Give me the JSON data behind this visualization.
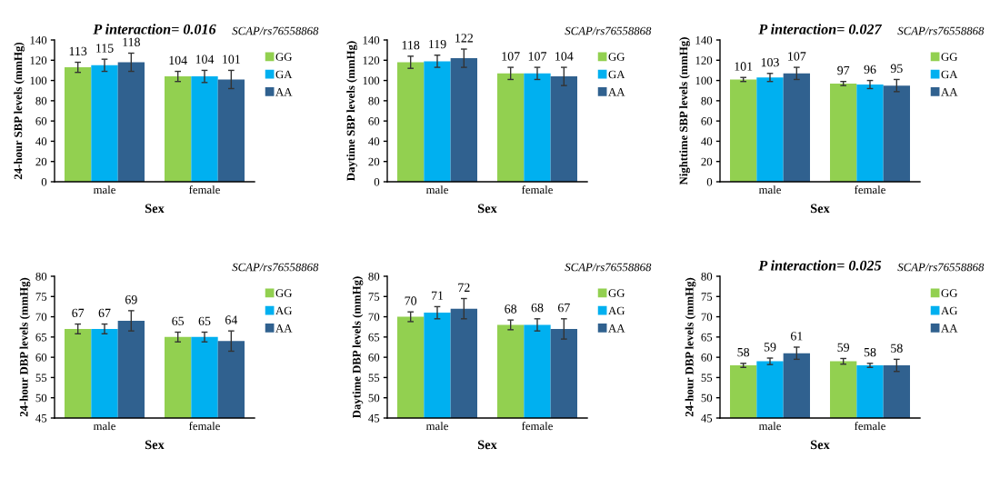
{
  "chart_data": [
    {
      "type": "bar",
      "categories": [
        "male",
        "female"
      ],
      "xlabel": "Sex",
      "ylabel": "24-hour SBP levels (mmHg)",
      "ylim": [
        0,
        140
      ],
      "yticks": [
        0,
        20,
        40,
        60,
        80,
        100,
        120,
        140
      ],
      "legend": "right",
      "data_labels": true,
      "grid": false,
      "annotations": [
        "SCAP/rs76558868",
        "P interaction= 0.016"
      ],
      "series": [
        {
          "name": "GG",
          "color": "#92d050",
          "values": [
            113,
            104
          ],
          "errors": [
            5,
            5
          ]
        },
        {
          "name": "GA",
          "color": "#00b0f0",
          "values": [
            115,
            104
          ],
          "errors": [
            6,
            6
          ]
        },
        {
          "name": "AA",
          "color": "#30618f",
          "values": [
            118,
            101
          ],
          "errors": [
            9,
            9
          ]
        }
      ]
    },
    {
      "type": "bar",
      "categories": [
        "male",
        "female"
      ],
      "xlabel": "Sex",
      "ylabel": "Daytime SBP levels (mmHg)",
      "ylim": [
        0,
        140
      ],
      "yticks": [
        0,
        20,
        40,
        60,
        80,
        100,
        120,
        140
      ],
      "legend": "right",
      "data_labels": true,
      "grid": false,
      "annotations": [
        "SCAP/rs76558868"
      ],
      "series": [
        {
          "name": "GG",
          "color": "#92d050",
          "values": [
            118,
            107
          ],
          "errors": [
            6,
            6
          ]
        },
        {
          "name": "GA",
          "color": "#00b0f0",
          "values": [
            119,
            107
          ],
          "errors": [
            6,
            6
          ]
        },
        {
          "name": "AA",
          "color": "#30618f",
          "values": [
            122,
            104
          ],
          "errors": [
            9,
            9
          ]
        }
      ]
    },
    {
      "type": "bar",
      "categories": [
        "male",
        "female"
      ],
      "xlabel": "Sex",
      "ylabel": "Nighttime SBP levels (mmHg)",
      "ylim": [
        0,
        140
      ],
      "yticks": [
        0,
        20,
        40,
        60,
        80,
        100,
        120,
        140
      ],
      "legend": "right",
      "data_labels": true,
      "grid": false,
      "annotations": [
        "SCAP/rs76558868",
        "P interaction= 0.027"
      ],
      "series": [
        {
          "name": "GG",
          "color": "#92d050",
          "values": [
            101,
            97
          ],
          "errors": [
            2,
            2
          ]
        },
        {
          "name": "GA",
          "color": "#00b0f0",
          "values": [
            103,
            96
          ],
          "errors": [
            4,
            4
          ]
        },
        {
          "name": "AA",
          "color": "#30618f",
          "values": [
            107,
            95
          ],
          "errors": [
            6,
            6
          ]
        }
      ]
    },
    {
      "type": "bar",
      "categories": [
        "male",
        "female"
      ],
      "xlabel": "Sex",
      "ylabel": "24-hour DBP levels (mmHg)",
      "ylim": [
        45,
        80
      ],
      "yticks": [
        45,
        50,
        55,
        60,
        65,
        70,
        75,
        80
      ],
      "legend": "right",
      "data_labels": true,
      "grid": false,
      "annotations": [
        "SCAP/rs76558868"
      ],
      "series": [
        {
          "name": "GG",
          "color": "#92d050",
          "values": [
            67,
            65
          ],
          "errors": [
            1.2,
            1.2
          ]
        },
        {
          "name": "AG",
          "color": "#00b0f0",
          "values": [
            67,
            65
          ],
          "errors": [
            1.2,
            1.2
          ]
        },
        {
          "name": "AA",
          "color": "#30618f",
          "values": [
            69,
            64
          ],
          "errors": [
            2.5,
            2.5
          ]
        }
      ]
    },
    {
      "type": "bar",
      "categories": [
        "male",
        "female"
      ],
      "xlabel": "Sex",
      "ylabel": "Daytime DBP levels (mmHg)",
      "ylim": [
        45,
        80
      ],
      "yticks": [
        45,
        50,
        55,
        60,
        65,
        70,
        75,
        80
      ],
      "legend": "right",
      "data_labels": true,
      "grid": false,
      "annotations": [
        "SCAP/rs76558868"
      ],
      "series": [
        {
          "name": "GG",
          "color": "#92d050",
          "values": [
            70,
            68
          ],
          "errors": [
            1.2,
            1.2
          ]
        },
        {
          "name": "AG",
          "color": "#00b0f0",
          "values": [
            71,
            68
          ],
          "errors": [
            1.5,
            1.5
          ]
        },
        {
          "name": "AA",
          "color": "#30618f",
          "values": [
            72,
            67
          ],
          "errors": [
            2.5,
            2.5
          ]
        }
      ]
    },
    {
      "type": "bar",
      "categories": [
        "male",
        "female"
      ],
      "xlabel": "Sex",
      "ylabel": "24-hour DBP levels (mmHg)",
      "ylim": [
        45,
        80
      ],
      "yticks": [
        45,
        50,
        55,
        60,
        65,
        70,
        75,
        80
      ],
      "legend": "right",
      "data_labels": true,
      "grid": false,
      "annotations": [
        "SCAP/rs76558868",
        "P interaction= 0.025"
      ],
      "series": [
        {
          "name": "GG",
          "color": "#92d050",
          "values": [
            58,
            59
          ],
          "errors": [
            0.5,
            0.7
          ]
        },
        {
          "name": "AG",
          "color": "#00b0f0",
          "values": [
            59,
            58
          ],
          "errors": [
            0.8,
            0.5
          ]
        },
        {
          "name": "AA",
          "color": "#30618f",
          "values": [
            61,
            58
          ],
          "errors": [
            1.5,
            1.5
          ]
        }
      ]
    }
  ]
}
